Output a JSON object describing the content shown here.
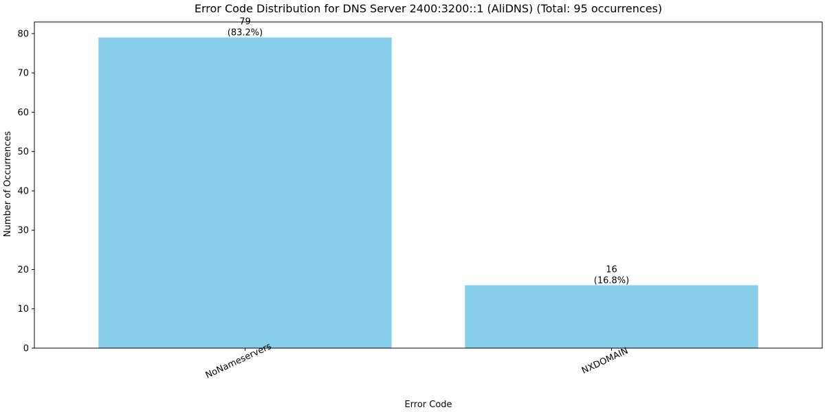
{
  "chart_data": {
    "type": "bar",
    "title": "Error Code Distribution for DNS Server 2400:3200::1 (AliDNS) (Total: 95 occurrences)",
    "xlabel": "Error Code",
    "ylabel": "Number of Occurrences",
    "categories": [
      "NoNameservers",
      "NXDOMAIN"
    ],
    "values": [
      79,
      16
    ],
    "data_labels": [
      {
        "count": "79",
        "percent": "(83.2%)"
      },
      {
        "count": "16",
        "percent": "(16.8%)"
      }
    ],
    "ylim": [
      0,
      82.95
    ],
    "yticks": [
      0,
      10,
      20,
      30,
      40,
      50,
      60,
      70,
      80
    ],
    "bar_color": "#87CEEB",
    "grid": false,
    "xtick_rotation_deg": 25
  }
}
